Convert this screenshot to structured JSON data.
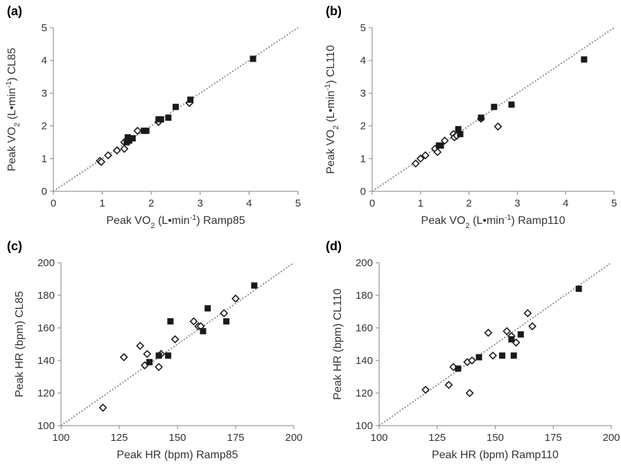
{
  "chart_data": [
    {
      "panel_label": "(a)",
      "type": "scatter",
      "xlabel": {
        "prefix": "Peak VO",
        "sub": "2",
        "middle": " (L•min",
        "sup": "-1",
        "suffix": ") Ramp85"
      },
      "ylabel": {
        "prefix": "Peak VO",
        "sub": "2",
        "middle": " (L•min",
        "sup": "-1",
        "suffix": ") CL85"
      },
      "xlim": [
        0,
        5
      ],
      "ylim": [
        0,
        5
      ],
      "xticks": [
        "0",
        "1",
        "2",
        "3",
        "4",
        "5"
      ],
      "yticks": [
        "0",
        "1",
        "2",
        "3",
        "4",
        "5"
      ],
      "xtick_values": [
        0,
        1,
        2,
        3,
        4,
        5
      ],
      "ytick_values": [
        0,
        1,
        2,
        3,
        4,
        5
      ],
      "identity_line": true,
      "series": [
        {
          "marker": "filled-square",
          "points": [
            [
              1.5,
              1.5
            ],
            [
              1.52,
              1.65
            ],
            [
              1.55,
              1.55
            ],
            [
              1.62,
              1.62
            ],
            [
              1.85,
              1.85
            ],
            [
              1.9,
              1.85
            ],
            [
              2.15,
              2.2
            ],
            [
              2.2,
              2.2
            ],
            [
              2.35,
              2.25
            ],
            [
              2.5,
              2.58
            ],
            [
              2.8,
              2.8
            ],
            [
              4.08,
              4.05
            ]
          ]
        },
        {
          "marker": "open-diamond",
          "points": [
            [
              0.95,
              0.93
            ],
            [
              0.98,
              0.9
            ],
            [
              1.12,
              1.1
            ],
            [
              1.3,
              1.25
            ],
            [
              1.45,
              1.3
            ],
            [
              1.45,
              1.5
            ],
            [
              1.55,
              1.58
            ],
            [
              1.72,
              1.85
            ],
            [
              2.15,
              2.12
            ],
            [
              2.78,
              2.7
            ]
          ]
        }
      ]
    },
    {
      "panel_label": "(b)",
      "type": "scatter",
      "xlabel": {
        "prefix": "Peak VO",
        "sub": "2",
        "middle": " (L•min",
        "sup": "-1",
        "suffix": ") Ramp110"
      },
      "ylabel": {
        "prefix": "Peak VO",
        "sub": "2",
        "middle": " (L•min",
        "sup": "-1",
        "suffix": ") CL110"
      },
      "xlim": [
        0,
        5
      ],
      "ylim": [
        0,
        5
      ],
      "xticks": [
        "0",
        "1",
        "2",
        "3",
        "4",
        "5"
      ],
      "yticks": [
        "0",
        "1",
        "2",
        "3",
        "4",
        "5"
      ],
      "xtick_values": [
        0,
        1,
        2,
        3,
        4,
        5
      ],
      "ytick_values": [
        0,
        1,
        2,
        3,
        4,
        5
      ],
      "identity_line": true,
      "series": [
        {
          "marker": "filled-square",
          "points": [
            [
              1.38,
              1.4
            ],
            [
              1.42,
              1.4
            ],
            [
              1.78,
              1.9
            ],
            [
              1.82,
              1.75
            ],
            [
              2.25,
              2.25
            ],
            [
              2.52,
              2.58
            ],
            [
              2.88,
              2.65
            ],
            [
              4.38,
              4.03
            ]
          ]
        },
        {
          "marker": "open-diamond",
          "points": [
            [
              0.9,
              0.85
            ],
            [
              1.0,
              1.0
            ],
            [
              1.1,
              1.1
            ],
            [
              1.3,
              1.3
            ],
            [
              1.35,
              1.2
            ],
            [
              1.5,
              1.55
            ],
            [
              1.68,
              1.75
            ],
            [
              1.7,
              1.65
            ],
            [
              1.75,
              1.7
            ],
            [
              2.25,
              2.22
            ],
            [
              2.6,
              1.98
            ]
          ]
        }
      ]
    },
    {
      "panel_label": "(c)",
      "type": "scatter",
      "xlabel": {
        "prefix": "Peak HR (bpm) Ramp85",
        "sub": "",
        "middle": "",
        "sup": "",
        "suffix": ""
      },
      "ylabel": {
        "prefix": "Peak HR (bpm) CL85",
        "sub": "",
        "middle": "",
        "sup": "",
        "suffix": ""
      },
      "xlim": [
        100,
        200
      ],
      "ylim": [
        100,
        200
      ],
      "xticks": [
        "100",
        "125",
        "150",
        "175",
        "200"
      ],
      "yticks": [
        "100",
        "120",
        "140",
        "160",
        "180",
        "200"
      ],
      "xtick_values": [
        100,
        125,
        150,
        175,
        200
      ],
      "ytick_values": [
        100,
        120,
        140,
        160,
        180,
        200
      ],
      "identity_line": true,
      "series": [
        {
          "marker": "filled-square",
          "points": [
            [
              138,
              139
            ],
            [
              142,
              143
            ],
            [
              146,
              143
            ],
            [
              147,
              164
            ],
            [
              161,
              158
            ],
            [
              163,
              172
            ],
            [
              171,
              164
            ],
            [
              183,
              186
            ]
          ]
        },
        {
          "marker": "open-diamond",
          "points": [
            [
              118,
              111
            ],
            [
              127,
              142
            ],
            [
              134,
              149
            ],
            [
              136,
              137
            ],
            [
              137,
              144
            ],
            [
              142,
              136
            ],
            [
              143,
              144
            ],
            [
              149,
              153
            ],
            [
              157,
              164
            ],
            [
              159,
              161
            ],
            [
              160,
              161
            ],
            [
              170,
              169
            ],
            [
              175,
              178
            ]
          ]
        }
      ]
    },
    {
      "panel_label": "(d)",
      "type": "scatter",
      "xlabel": {
        "prefix": "Peak HR (bpm) Ramp110",
        "sub": "",
        "middle": "",
        "sup": "",
        "suffix": ""
      },
      "ylabel": {
        "prefix": "Peak HR (bpm) CL110",
        "sub": "",
        "middle": "",
        "sup": "",
        "suffix": ""
      },
      "xlim": [
        100,
        200
      ],
      "ylim": [
        100,
        200
      ],
      "xticks": [
        "100",
        "125",
        "150",
        "175",
        "200"
      ],
      "yticks": [
        "100",
        "120",
        "140",
        "160",
        "180",
        "200"
      ],
      "xtick_values": [
        100,
        125,
        150,
        175,
        200
      ],
      "ytick_values": [
        100,
        120,
        140,
        160,
        180,
        200
      ],
      "identity_line": true,
      "series": [
        {
          "marker": "filled-square",
          "points": [
            [
              134,
              135
            ],
            [
              143,
              142
            ],
            [
              153,
              143
            ],
            [
              157,
              153
            ],
            [
              158,
              143
            ],
            [
              161,
              156
            ],
            [
              186,
              184
            ]
          ]
        },
        {
          "marker": "open-diamond",
          "points": [
            [
              120,
              122
            ],
            [
              130,
              125
            ],
            [
              132,
              136
            ],
            [
              138,
              139
            ],
            [
              139,
              120
            ],
            [
              140,
              140
            ],
            [
              147,
              157
            ],
            [
              149,
              143
            ],
            [
              155,
              158
            ],
            [
              157,
              155
            ],
            [
              159,
              151
            ],
            [
              164,
              169
            ],
            [
              166,
              161
            ]
          ]
        }
      ]
    }
  ]
}
